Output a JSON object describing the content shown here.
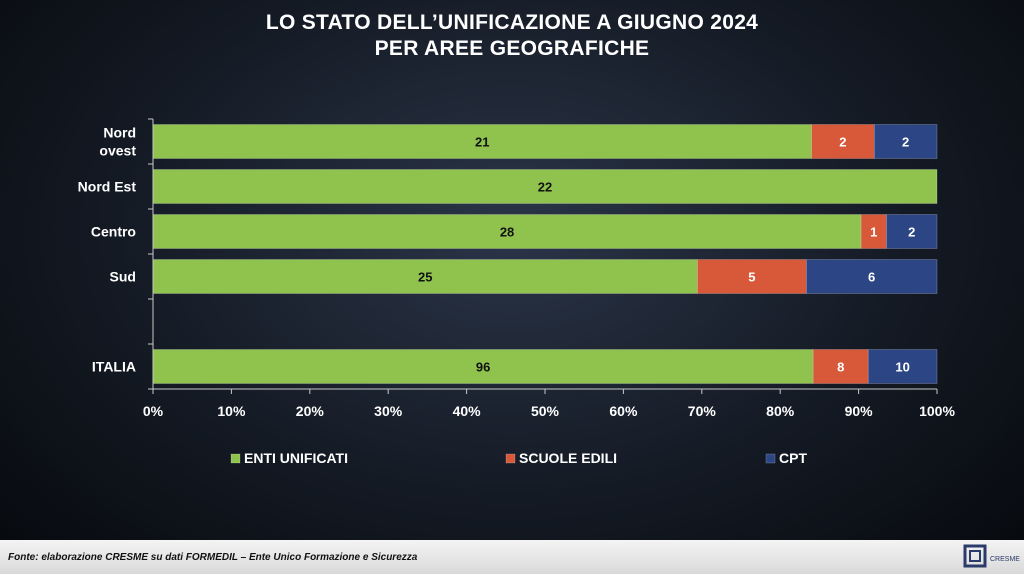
{
  "chart_data": {
    "type": "bar",
    "orientation": "horizontal",
    "stacked": "percent",
    "title_line1": "LO STATO DELL’UNIFICAZIONE A GIUGNO 2024",
    "title_line2": "PER AREE GEOGRAFICHE",
    "categories": [
      {
        "label_lines": [
          "Nord",
          "ovest"
        ]
      },
      {
        "label_lines": [
          "Nord Est"
        ]
      },
      {
        "label_lines": [
          "Centro"
        ]
      },
      {
        "label_lines": [
          "Sud"
        ]
      },
      {
        "label_lines": []
      },
      {
        "label_lines": [
          "ITALIA"
        ]
      }
    ],
    "series": [
      {
        "name": "ENTI UNIFICATI",
        "color": "#8fc34d",
        "values": [
          21,
          22,
          28,
          25,
          null,
          96
        ]
      },
      {
        "name": "SCUOLE EDILI",
        "color": "#d8583a",
        "values": [
          2,
          0,
          1,
          5,
          null,
          8
        ]
      },
      {
        "name": "CPT",
        "color": "#2c4585",
        "values": [
          2,
          0,
          2,
          6,
          null,
          10
        ]
      }
    ],
    "x_ticks": [
      "0%",
      "10%",
      "20%",
      "30%",
      "40%",
      "50%",
      "60%",
      "70%",
      "80%",
      "90%",
      "100%"
    ],
    "xlim": [
      0,
      100
    ],
    "legend_position": "bottom"
  },
  "footer": {
    "source": "Fonte: elaborazione CRESME su dati FORMEDIL – Ente Unico Formazione e Sicurezza"
  },
  "logo": {
    "text": "CRESME"
  }
}
